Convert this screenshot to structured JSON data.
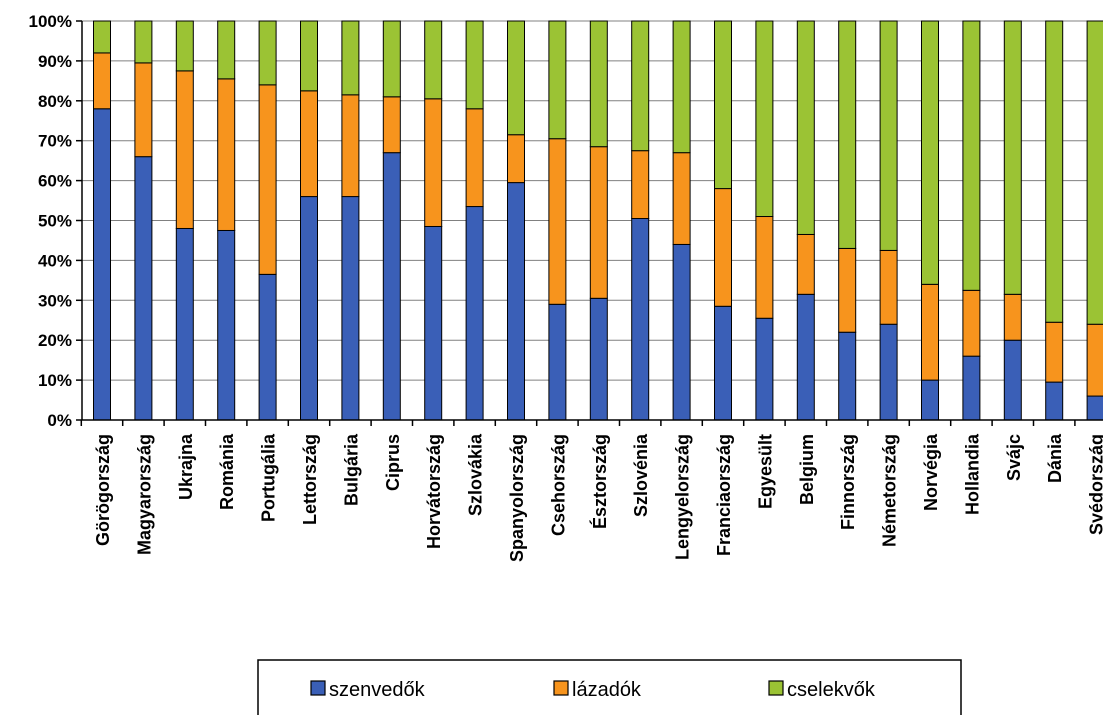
{
  "chart_data": {
    "type": "bar",
    "stacked": true,
    "orientation": "vertical",
    "title": "",
    "xlabel": "",
    "ylabel": "",
    "ylim": [
      0,
      100
    ],
    "y_ticks": [
      "0%",
      "10%",
      "20%",
      "30%",
      "40%",
      "50%",
      "60%",
      "70%",
      "80%",
      "90%",
      "100%"
    ],
    "grid": true,
    "legend_position": "bottom",
    "categories": [
      "Görögország",
      "Magyarország",
      "Ukrajna",
      "Románia",
      "Portugália",
      "Lettország",
      "Bulgária",
      "Ciprus",
      "Horvátország",
      "Szlovákia",
      "Spanyolország",
      "Csehország",
      "Észtország",
      "Szlovénia",
      "Lengyelország",
      "Franciaország",
      "Egyesült",
      "Belgium",
      "Finnország",
      "Németország",
      "Norvégia",
      "Hollandia",
      "Svájc",
      "Dánia",
      "Svédország"
    ],
    "series": [
      {
        "name": "szenvedők",
        "color": "#3a5fb7",
        "values": [
          78,
          66,
          48,
          47.5,
          36.5,
          56,
          56,
          67,
          48.5,
          53.5,
          59.5,
          29,
          30.5,
          50.5,
          44,
          28.5,
          25.5,
          31.5,
          22,
          24,
          10,
          16,
          20,
          9.5,
          6
        ]
      },
      {
        "name": "lázadók",
        "color": "#f7941d",
        "values": [
          14,
          23.5,
          39.5,
          38,
          47.5,
          26.5,
          25.5,
          14,
          32,
          24.5,
          12,
          41.5,
          38,
          17,
          23,
          29.5,
          25.5,
          15,
          21,
          18.5,
          24,
          16.5,
          11.5,
          15,
          18
        ]
      },
      {
        "name": "cselekvők",
        "color": "#9bc334",
        "values": [
          8,
          10.5,
          12.5,
          14.5,
          16,
          17.5,
          18.5,
          19,
          19.5,
          22,
          28.5,
          29.5,
          31.5,
          32.5,
          33,
          42,
          49,
          53.5,
          57,
          57.5,
          66,
          67.5,
          68.5,
          75.5,
          76
        ]
      }
    ]
  }
}
